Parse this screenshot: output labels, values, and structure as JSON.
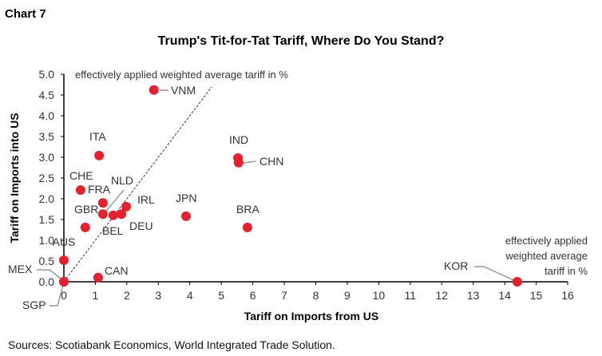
{
  "chart_number": "Chart 7",
  "source": "Sources: Scotiabank Economics, World Integrated Trade Solution.",
  "colors": {
    "point": "#e8202e",
    "axis": "#000000",
    "leader": "#999999"
  },
  "chart_data": {
    "type": "scatter",
    "title": "Trump's Tit-for-Tat Tariff, Where Do You Stand?",
    "xlabel": "Tariff on Imports from US",
    "ylabel": "Tariff on Imports into US",
    "xlim": [
      0,
      16
    ],
    "ylim": [
      0,
      5
    ],
    "xticks": [
      "0",
      "1",
      "2",
      "3",
      "4",
      "5",
      "6",
      "7",
      "8",
      "9",
      "10",
      "11",
      "12",
      "13",
      "14",
      "15",
      "16"
    ],
    "yticks": [
      "0.0",
      "0.5",
      "1.0",
      "1.5",
      "2.0",
      "2.5",
      "3.0",
      "3.5",
      "4.0",
      "4.5",
      "5.0"
    ],
    "grid": false,
    "reference_line": {
      "label": "effectively applied weighted average tariff in %",
      "equation": "y = x",
      "style": "dashed"
    },
    "axis_note": [
      "effectively applied",
      "weighted average",
      "tariff in %"
    ],
    "points": [
      {
        "label": "VNM",
        "x": 2.86,
        "y": 4.62
      },
      {
        "label": "ITA",
        "x": 1.12,
        "y": 3.04
      },
      {
        "label": "IND",
        "x": 5.53,
        "y": 2.98
      },
      {
        "label": "CHN",
        "x": 5.55,
        "y": 2.87
      },
      {
        "label": "CHE",
        "x": 0.53,
        "y": 2.21
      },
      {
        "label": "FRA",
        "x": 1.24,
        "y": 1.9
      },
      {
        "label": "NLD",
        "x": 1.24,
        "y": 1.63
      },
      {
        "label": "BEL",
        "x": 1.57,
        "y": 1.6
      },
      {
        "label": "DEU",
        "x": 1.83,
        "y": 1.63
      },
      {
        "label": "IRL",
        "x": 1.98,
        "y": 1.81
      },
      {
        "label": "GBR",
        "x": 0.68,
        "y": 1.31
      },
      {
        "label": "JPN",
        "x": 3.88,
        "y": 1.58
      },
      {
        "label": "BRA",
        "x": 5.83,
        "y": 1.31
      },
      {
        "label": "AUS",
        "x": 0.0,
        "y": 0.52
      },
      {
        "label": "CAN",
        "x": 1.09,
        "y": 0.1
      },
      {
        "label": "MEX",
        "x": 0.0,
        "y": 0.0
      },
      {
        "label": "SGP",
        "x": 0.0,
        "y": 0.0
      },
      {
        "label": "KOR",
        "x": 14.4,
        "y": 0.0
      }
    ]
  }
}
